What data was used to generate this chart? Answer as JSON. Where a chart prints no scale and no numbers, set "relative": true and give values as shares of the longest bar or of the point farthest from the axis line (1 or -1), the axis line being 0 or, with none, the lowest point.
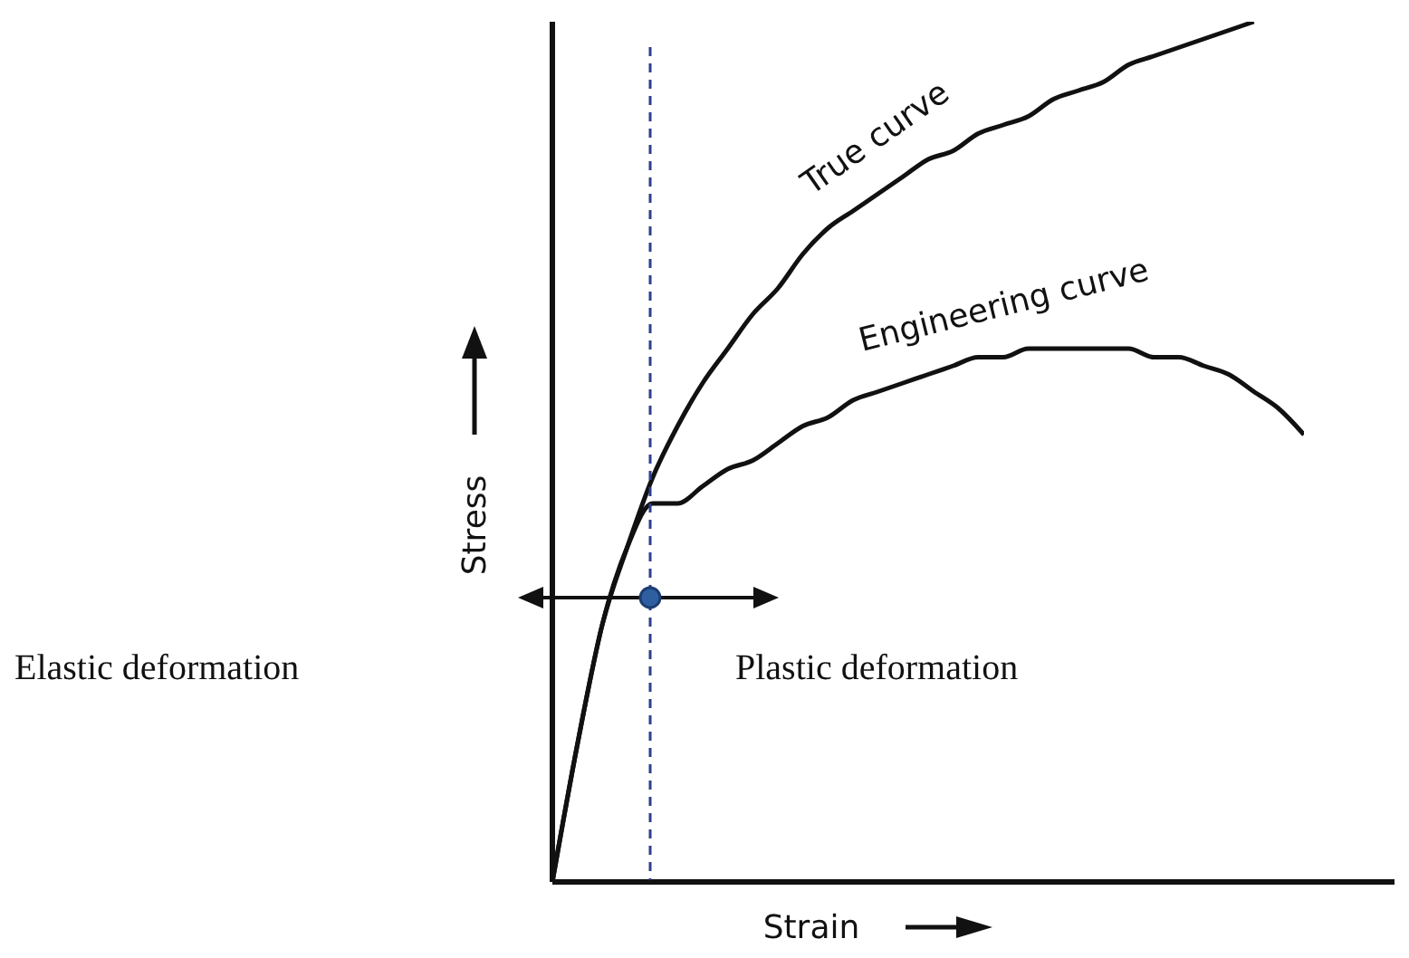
{
  "chart_data": {
    "type": "line",
    "relative": true,
    "xlabel": "Strain",
    "ylabel": "Stress",
    "categories": [
      null,
      null,
      null,
      null,
      null,
      null,
      null,
      null,
      null,
      null,
      null,
      null,
      null,
      null,
      null,
      null,
      null,
      null,
      null,
      null,
      null,
      null,
      null,
      null,
      null,
      null,
      null,
      null,
      null,
      null,
      null
    ],
    "series": [
      {
        "name": "True curve",
        "color": "#111111",
        "values": [
          0,
          0.16,
          0.3,
          0.39,
          0.47,
          0.53,
          0.58,
          0.62,
          0.66,
          0.69,
          0.73,
          0.76,
          0.78,
          0.8,
          0.82,
          0.84,
          0.85,
          0.87,
          0.88,
          0.89,
          0.91,
          0.92,
          0.93,
          0.95,
          0.96,
          0.97,
          0.98,
          0.99,
          1.0,
          null,
          null
        ]
      },
      {
        "name": "Engineering curve",
        "color": "#111111",
        "values": [
          0,
          0.16,
          0.3,
          0.39,
          0.44,
          0.44,
          0.46,
          0.48,
          0.49,
          0.51,
          0.53,
          0.54,
          0.56,
          0.57,
          0.58,
          0.59,
          0.6,
          0.61,
          0.61,
          0.62,
          0.62,
          0.62,
          0.62,
          0.62,
          0.61,
          0.61,
          0.6,
          0.59,
          0.57,
          0.55,
          0.52
        ]
      }
    ],
    "annotations": [
      "Elastic deformation",
      "Plastic deformation"
    ],
    "legend": false,
    "grid": false,
    "marker": "none",
    "line_style": "solid"
  }
}
